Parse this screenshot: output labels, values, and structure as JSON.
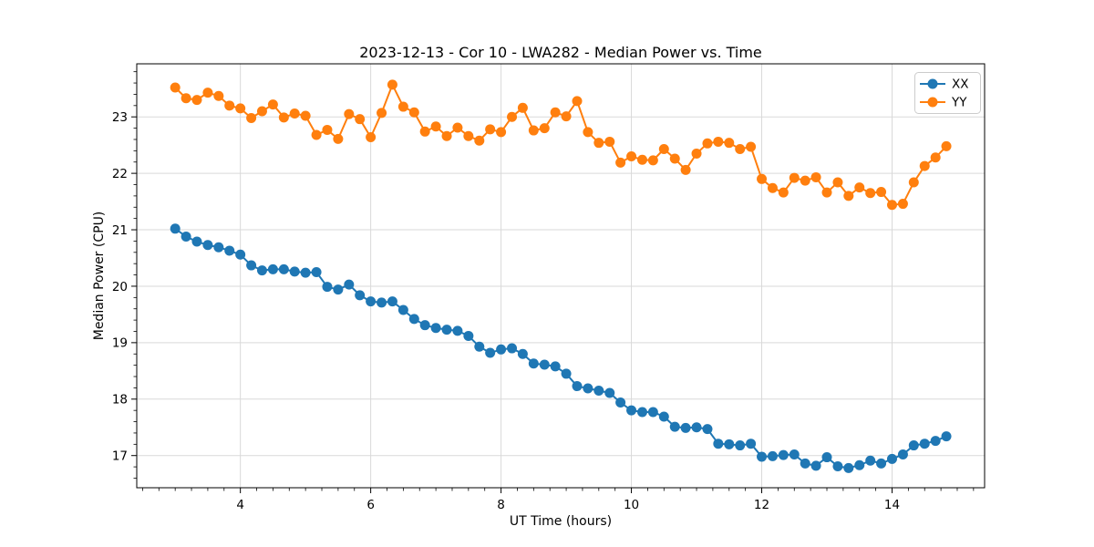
{
  "chart_data": {
    "type": "line",
    "title": "2023-12-13 - Cor 10 - LWA282 - Median Power vs. Time",
    "xlabel": "UT Time (hours)",
    "ylabel": "Median Power (CPU)",
    "xlim": [
      2.41,
      15.42
    ],
    "ylim": [
      16.43,
      23.94
    ],
    "xticks": [
      4,
      6,
      8,
      10,
      12,
      14
    ],
    "yticks": [
      17,
      18,
      19,
      20,
      21,
      22,
      23
    ],
    "minor_xtick_step": 0.25,
    "minor_ytick_step": 0.2,
    "grid": true,
    "grid_color": "#d9d9d9",
    "legend_position": "upper right",
    "x": [
      3.0,
      3.167,
      3.333,
      3.5,
      3.667,
      3.833,
      4.0,
      4.167,
      4.333,
      4.5,
      4.667,
      4.833,
      5.0,
      5.167,
      5.333,
      5.5,
      5.667,
      5.833,
      6.0,
      6.167,
      6.333,
      6.5,
      6.667,
      6.833,
      7.0,
      7.167,
      7.333,
      7.5,
      7.667,
      7.833,
      8.0,
      8.167,
      8.333,
      8.5,
      8.667,
      8.833,
      9.0,
      9.167,
      9.333,
      9.5,
      9.667,
      9.833,
      10.0,
      10.167,
      10.333,
      10.5,
      10.667,
      10.833,
      11.0,
      11.167,
      11.333,
      11.5,
      11.667,
      11.833,
      12.0,
      12.167,
      12.333,
      12.5,
      12.667,
      12.833,
      13.0,
      13.167,
      13.333,
      13.5,
      13.667,
      13.833,
      14.0,
      14.167,
      14.333,
      14.5,
      14.667,
      14.833
    ],
    "series": [
      {
        "name": "XX",
        "color": "#1f77b4",
        "marker": "circle",
        "values": [
          21.02,
          20.88,
          20.79,
          20.73,
          20.69,
          20.63,
          20.56,
          20.37,
          20.28,
          20.3,
          20.3,
          20.26,
          20.24,
          20.25,
          19.99,
          19.94,
          20.03,
          19.84,
          19.73,
          19.71,
          19.73,
          19.58,
          19.42,
          19.31,
          19.26,
          19.23,
          19.21,
          19.12,
          18.93,
          18.82,
          18.88,
          18.9,
          18.8,
          18.63,
          18.61,
          18.58,
          18.45,
          18.23,
          18.19,
          18.15,
          18.11,
          17.94,
          17.8,
          17.77,
          17.77,
          17.69,
          17.51,
          17.49,
          17.5,
          17.47,
          17.21,
          17.2,
          17.18,
          17.21,
          16.98,
          16.99,
          17.01,
          17.02,
          16.86,
          16.82,
          16.97,
          16.81,
          16.78,
          16.83,
          16.91,
          16.86,
          16.94,
          17.02,
          17.18,
          17.21,
          17.26,
          17.34
        ]
      },
      {
        "name": "YY",
        "color": "#ff7f0e",
        "marker": "circle",
        "values": [
          23.52,
          23.33,
          23.3,
          23.43,
          23.37,
          23.2,
          23.15,
          22.98,
          23.1,
          23.22,
          22.99,
          23.06,
          23.02,
          22.68,
          22.77,
          22.61,
          23.05,
          22.96,
          22.64,
          23.07,
          23.57,
          23.18,
          23.08,
          22.74,
          22.83,
          22.66,
          22.81,
          22.66,
          22.58,
          22.78,
          22.73,
          23.0,
          23.16,
          22.76,
          22.8,
          23.08,
          23.01,
          23.28,
          22.73,
          22.54,
          22.56,
          22.19,
          22.3,
          22.24,
          22.23,
          22.43,
          22.26,
          22.06,
          22.35,
          22.53,
          22.56,
          22.54,
          22.43,
          22.47,
          21.9,
          21.74,
          21.66,
          21.92,
          21.87,
          21.93,
          21.66,
          21.84,
          21.6,
          21.75,
          21.65,
          21.67,
          21.44,
          21.46,
          21.84,
          22.13,
          22.28,
          22.48
        ]
      }
    ]
  }
}
